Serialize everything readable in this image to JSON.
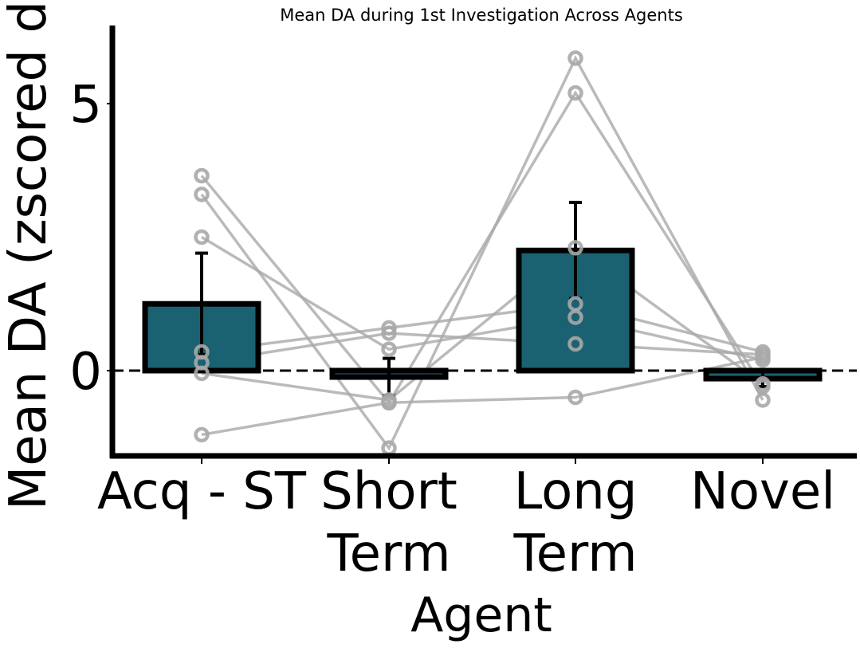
{
  "chart_data": {
    "type": "bar",
    "title": "Mean DA during 1st Investigation Across Agents",
    "xlabel": "Agent",
    "ylabel": "Mean DA (zscored dff)",
    "categories": [
      [
        "Acq - ST"
      ],
      [
        "Short",
        "Term"
      ],
      [
        "Long",
        "Term"
      ],
      [
        "Novel"
      ]
    ],
    "values": [
      1.25,
      -0.12,
      2.25,
      -0.15
    ],
    "errors": [
      0.95,
      0.35,
      0.9,
      0.15
    ],
    "ylim": [
      -1.6,
      6.5
    ],
    "yticks": [
      0,
      5
    ],
    "baseline": 0,
    "grid": false,
    "legend": "none",
    "bar_color": "#1a6272",
    "point_color": "#a9a9a9",
    "subjects": [
      [
        3.65,
        -0.6,
        5.2,
        -0.3
      ],
      [
        3.3,
        -1.45,
        5.85,
        -0.55
      ],
      [
        2.5,
        0.4,
        1.0,
        0.2
      ],
      [
        0.35,
        0.8,
        1.25,
        0.35
      ],
      [
        0.15,
        0.7,
        0.5,
        0.3
      ],
      [
        -0.05,
        -0.55,
        2.3,
        -0.25
      ],
      [
        -1.2,
        -0.6,
        -0.5,
        0.25
      ]
    ]
  }
}
